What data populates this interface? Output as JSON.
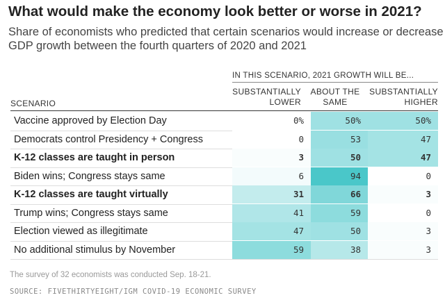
{
  "chart_data": {
    "type": "table",
    "title": "What would make the economy look better or worse in 2021?",
    "subtitle": "Share of economists who predicted that certain scenarios would increase or decrease GDP growth between the fourth quarters of 2020 and 2021",
    "column_group_label": "IN THIS SCENARIO, 2021 GROWTH WILL BE...",
    "row_header": "SCENARIO",
    "columns": [
      {
        "key": "lower",
        "line1": "SUBSTANTIALLY",
        "line2": "LOWER"
      },
      {
        "key": "same",
        "line1": "ABOUT THE",
        "line2": "SAME"
      },
      {
        "key": "higher",
        "line1": "SUBSTANTIALLY",
        "line2": "HIGHER"
      }
    ],
    "rows": [
      {
        "scenario": "Vaccine approved by Election Day",
        "bold": false,
        "values": [
          0,
          50,
          50
        ],
        "labels": [
          "0%",
          "50%",
          "50%"
        ]
      },
      {
        "scenario": "Democrats control Presidency + Congress",
        "bold": false,
        "values": [
          0,
          53,
          47
        ],
        "labels": [
          "0",
          "53",
          "47"
        ]
      },
      {
        "scenario": "K-12 classes are taught in person",
        "bold": true,
        "values": [
          3,
          50,
          47
        ],
        "labels": [
          "3",
          "50",
          "47"
        ]
      },
      {
        "scenario": "Biden wins; Congress stays same",
        "bold": false,
        "values": [
          6,
          94,
          0
        ],
        "labels": [
          "6",
          "94",
          "0"
        ]
      },
      {
        "scenario": "K-12 classes are taught virtually",
        "bold": true,
        "values": [
          31,
          66,
          3
        ],
        "labels": [
          "31",
          "66",
          "3"
        ]
      },
      {
        "scenario": "Trump wins; Congress stays same",
        "bold": false,
        "values": [
          41,
          59,
          0
        ],
        "labels": [
          "41",
          "59",
          "0"
        ]
      },
      {
        "scenario": "Election viewed as illegitimate",
        "bold": false,
        "values": [
          47,
          50,
          3
        ],
        "labels": [
          "47",
          "50",
          "3"
        ]
      },
      {
        "scenario": "No additional stimulus by November",
        "bold": false,
        "values": [
          59,
          38,
          3
        ],
        "labels": [
          "59",
          "38",
          "3"
        ]
      }
    ],
    "heat_color_low": "#ffffff",
    "heat_color_high": "#3ec3c6"
  },
  "footnote": "The survey of 32 economists was conducted Sep. 18-21.",
  "source": "SOURCE: FIVETHIRTYEIGHT/IGM COVID-19 ECONOMIC SURVEY"
}
